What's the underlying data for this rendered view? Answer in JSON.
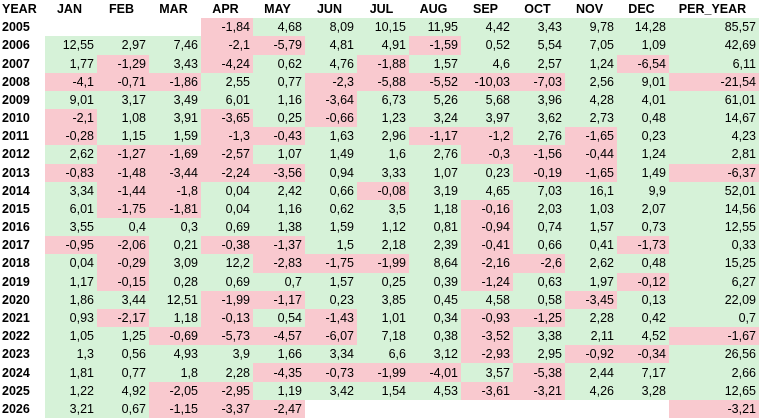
{
  "headers": [
    "YEAR",
    "JAN",
    "FEB",
    "MAR",
    "APR",
    "MAY",
    "JUN",
    "JUL",
    "AUG",
    "SEP",
    "OCT",
    "NOV",
    "DEC",
    "PER_YEAR"
  ],
  "colors": {
    "positive": "#d6f2d8",
    "negative": "#f9c9cf"
  },
  "rows": [
    {
      "year": "2005",
      "cells": [
        "",
        "",
        "",
        "-1,84",
        "4,68",
        "8,09",
        "10,15",
        "11,95",
        "4,42",
        "3,43",
        "9,78",
        "14,28",
        "85,57"
      ]
    },
    {
      "year": "2006",
      "cells": [
        "12,55",
        "2,97",
        "7,46",
        "-2,1",
        "-5,79",
        "4,81",
        "4,91",
        "-1,59",
        "0,52",
        "5,54",
        "7,05",
        "1,09",
        "42,69"
      ]
    },
    {
      "year": "2007",
      "cells": [
        "1,77",
        "-1,29",
        "3,43",
        "-4,24",
        "0,62",
        "4,76",
        "-1,88",
        "1,57",
        "4,6",
        "2,57",
        "1,24",
        "-6,54",
        "6,11"
      ]
    },
    {
      "year": "2008",
      "cells": [
        "-4,1",
        "-0,71",
        "-1,86",
        "2,55",
        "0,77",
        "-2,3",
        "-5,88",
        "-5,52",
        "-10,03",
        "-7,03",
        "2,56",
        "9,01",
        "-21,54"
      ]
    },
    {
      "year": "2009",
      "cells": [
        "9,01",
        "3,17",
        "3,49",
        "6,01",
        "1,16",
        "-3,64",
        "6,73",
        "5,26",
        "5,68",
        "3,96",
        "4,28",
        "4,01",
        "61,01"
      ]
    },
    {
      "year": "2010",
      "cells": [
        "-2,1",
        "1,08",
        "3,91",
        "-3,65",
        "0,25",
        "-0,66",
        "1,23",
        "3,24",
        "3,97",
        "3,62",
        "2,73",
        "0,48",
        "14,67"
      ]
    },
    {
      "year": "2011",
      "cells": [
        "-0,28",
        "1,15",
        "1,59",
        "-1,3",
        "-0,43",
        "1,63",
        "2,96",
        "-1,17",
        "-1,2",
        "2,76",
        "-1,65",
        "0,23",
        "4,23"
      ]
    },
    {
      "year": "2012",
      "cells": [
        "2,62",
        "-1,27",
        "-1,69",
        "-2,57",
        "1,07",
        "1,49",
        "1,6",
        "2,76",
        "-0,3",
        "-1,56",
        "-0,44",
        "1,24",
        "2,81"
      ]
    },
    {
      "year": "2013",
      "cells": [
        "-0,83",
        "-1,48",
        "-3,44",
        "-2,24",
        "-3,56",
        "0,94",
        "3,33",
        "1,07",
        "0,23",
        "-0,19",
        "-1,65",
        "1,49",
        "-6,37"
      ]
    },
    {
      "year": "2014",
      "cells": [
        "3,34",
        "-1,44",
        "-1,8",
        "0,04",
        "2,42",
        "0,66",
        "-0,08",
        "3,19",
        "4,65",
        "7,03",
        "16,1",
        "9,9",
        "52,01"
      ]
    },
    {
      "year": "2015",
      "cells": [
        "6,01",
        "-1,75",
        "-1,81",
        "0,04",
        "1,16",
        "0,62",
        "3,5",
        "1,18",
        "-0,16",
        "2,03",
        "1,03",
        "2,07",
        "14,56"
      ]
    },
    {
      "year": "2016",
      "cells": [
        "3,55",
        "0,4",
        "0,3",
        "0,69",
        "1,38",
        "1,59",
        "1,12",
        "0,81",
        "-0,94",
        "0,74",
        "1,57",
        "0,73",
        "12,55"
      ]
    },
    {
      "year": "2017",
      "cells": [
        "-0,95",
        "-2,06",
        "0,21",
        "-0,38",
        "-1,37",
        "1,5",
        "2,18",
        "2,39",
        "-0,41",
        "0,66",
        "0,41",
        "-1,73",
        "0,33"
      ]
    },
    {
      "year": "2018",
      "cells": [
        "0,04",
        "-0,29",
        "3,09",
        "12,2",
        "-2,83",
        "-1,75",
        "-1,99",
        "8,64",
        "-2,16",
        "-2,6",
        "2,62",
        "0,48",
        "15,25"
      ]
    },
    {
      "year": "2019",
      "cells": [
        "1,17",
        "-0,15",
        "0,28",
        "0,69",
        "0,7",
        "1,57",
        "0,25",
        "0,39",
        "-1,24",
        "0,63",
        "1,97",
        "-0,12",
        "6,27"
      ]
    },
    {
      "year": "2020",
      "cells": [
        "1,86",
        "3,44",
        "12,51",
        "-1,99",
        "-1,17",
        "0,23",
        "3,85",
        "0,45",
        "4,58",
        "0,58",
        "-3,45",
        "0,13",
        "22,09"
      ]
    },
    {
      "year": "2021",
      "cells": [
        "0,93",
        "-2,17",
        "1,18",
        "-0,13",
        "0,54",
        "-1,43",
        "1,01",
        "0,34",
        "-0,93",
        "-1,25",
        "2,28",
        "0,42",
        "0,7"
      ]
    },
    {
      "year": "2022",
      "cells": [
        "1,05",
        "1,25",
        "-0,69",
        "-5,73",
        "-4,57",
        "-6,07",
        "7,18",
        "0,38",
        "-3,52",
        "3,38",
        "2,11",
        "4,52",
        "-1,67"
      ]
    },
    {
      "year": "2023",
      "cells": [
        "1,3",
        "0,56",
        "4,93",
        "3,9",
        "1,66",
        "3,34",
        "6,6",
        "3,12",
        "-2,93",
        "2,95",
        "-0,92",
        "-0,34",
        "26,56"
      ]
    },
    {
      "year": "2024",
      "cells": [
        "1,81",
        "0,77",
        "1,8",
        "2,28",
        "-4,35",
        "-0,73",
        "-1,99",
        "-4,01",
        "3,57",
        "-5,38",
        "2,44",
        "7,17",
        "2,66"
      ]
    },
    {
      "year": "2025",
      "cells": [
        "1,22",
        "4,92",
        "-2,05",
        "-2,95",
        "1,19",
        "3,42",
        "1,54",
        "4,53",
        "-3,61",
        "-3,21",
        "4,26",
        "3,28",
        "12,65"
      ]
    },
    {
      "year": "2026",
      "cells": [
        "3,21",
        "0,67",
        "-1,15",
        "-3,37",
        "-2,47",
        "",
        "",
        "",
        "",
        "",
        "",
        "",
        "-3,21"
      ]
    }
  ]
}
